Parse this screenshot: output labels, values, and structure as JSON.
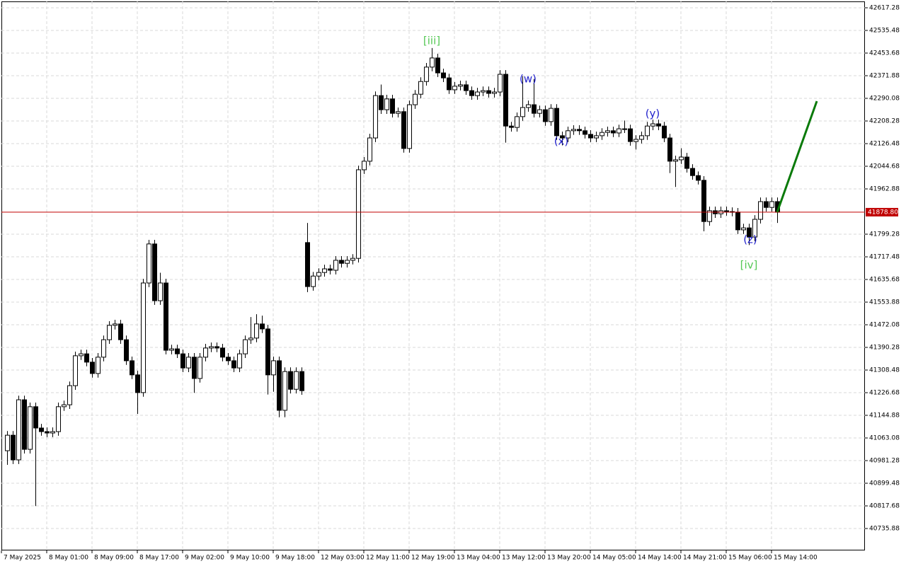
{
  "chart_data": {
    "type": "candlestick",
    "ylim": [
      40656.7,
      42640.3
    ],
    "yticks": [
      42617.28,
      42535.48,
      42453.68,
      42371.88,
      42290.08,
      42208.28,
      42126.48,
      42044.68,
      41962.88,
      41799.28,
      41717.48,
      41635.68,
      41553.88,
      41472.08,
      41390.28,
      41308.48,
      41226.68,
      41144.88,
      41063.08,
      40981.28,
      40899.48,
      40817.68,
      40735.88
    ],
    "grid": true,
    "up_color": "#ffffff",
    "down_color": "#000000",
    "outline_color": "#000000",
    "current_price": {
      "value": 41878.8,
      "label": "41878.80",
      "color": "#c00000"
    },
    "projection": {
      "x": [
        136,
        143
      ],
      "values": [
        41878.8,
        42280
      ],
      "color": "#0a7a0a"
    },
    "annotations": [
      {
        "text": "[iii]",
        "color": "#55c855"
      },
      {
        "text": "(w)",
        "color": "#2222cc"
      },
      {
        "text": "(x)",
        "color": "#2222cc"
      },
      {
        "text": "(y)",
        "color": "#2222cc"
      },
      {
        "text": "(z)",
        "color": "#2222cc"
      },
      {
        "text": "[iv]",
        "color": "#55c855"
      }
    ],
    "categories": [
      "7 May 2025",
      null,
      null,
      null,
      null,
      null,
      null,
      null,
      "8 May 01:00",
      null,
      null,
      null,
      null,
      null,
      null,
      null,
      "8 May 09:00",
      null,
      null,
      null,
      null,
      null,
      null,
      null,
      "8 May 17:00",
      null,
      null,
      null,
      null,
      null,
      null,
      null,
      "9 May 02:00",
      null,
      null,
      null,
      null,
      null,
      null,
      null,
      "9 May 10:00",
      null,
      null,
      null,
      null,
      null,
      null,
      null,
      "9 May 18:00",
      null,
      null,
      null,
      null,
      null,
      null,
      null,
      "12 May 03:00",
      null,
      null,
      null,
      null,
      null,
      null,
      null,
      "12 May 11:00",
      null,
      null,
      null,
      null,
      null,
      null,
      null,
      "12 May 19:00",
      null,
      null,
      null,
      null,
      null,
      null,
      null,
      "13 May 04:00",
      null,
      null,
      null,
      null,
      null,
      null,
      null,
      "13 May 12:00",
      null,
      null,
      null,
      null,
      null,
      null,
      null,
      "13 May 20:00",
      null,
      null,
      null,
      null,
      null,
      null,
      null,
      "14 May 05:00",
      null,
      null,
      null,
      null,
      null,
      null,
      null,
      "14 May 14:00",
      null,
      null,
      null,
      null,
      null,
      null,
      null,
      "14 May 21:00",
      null,
      null,
      null,
      null,
      null,
      null,
      null,
      "15 May 06:00",
      null,
      null,
      null,
      null,
      null,
      null,
      null,
      "15 May 14:00"
    ],
    "ohlc": [
      [
        41017,
        41088,
        40966,
        41073
      ],
      [
        41073,
        41088,
        40969,
        40984
      ],
      [
        40984,
        41216,
        40969,
        41201
      ],
      [
        41201,
        41216,
        41007,
        41022
      ],
      [
        41022,
        41191,
        41007,
        41176
      ],
      [
        41176,
        41191,
        40817,
        41099
      ],
      [
        41099,
        41114,
        41071,
        41086
      ],
      [
        41086,
        41101,
        41066,
        41081
      ],
      [
        41081,
        41101,
        41066,
        41086
      ],
      [
        41086,
        41191,
        41071,
        41176
      ],
      [
        41176,
        41198,
        41161,
        41183
      ],
      [
        41183,
        41267,
        41168,
        41252
      ],
      [
        41252,
        41375,
        41237,
        41360
      ],
      [
        41360,
        41382,
        41345,
        41367
      ],
      [
        41367,
        41382,
        41322,
        41337
      ],
      [
        41337,
        41352,
        41281,
        41296
      ],
      [
        41296,
        41370,
        41281,
        41355
      ],
      [
        41355,
        41433,
        41340,
        41418
      ],
      [
        41418,
        41485,
        41403,
        41470
      ],
      [
        41470,
        41490,
        41455,
        41475
      ],
      [
        41475,
        41490,
        41403,
        41418
      ],
      [
        41418,
        41433,
        41327,
        41342
      ],
      [
        41342,
        41357,
        41276,
        41291
      ],
      [
        41291,
        41306,
        41150,
        41227
      ],
      [
        41227,
        41638,
        41212,
        41623
      ],
      [
        41623,
        41779,
        41608,
        41764
      ],
      [
        41764,
        41779,
        41544,
        41559
      ],
      [
        41559,
        41660,
        41544,
        41623
      ],
      [
        41623,
        41638,
        41365,
        41380
      ],
      [
        41380,
        41400,
        41365,
        41385
      ],
      [
        41385,
        41400,
        41352,
        41367
      ],
      [
        41367,
        41382,
        41301,
        41316
      ],
      [
        41316,
        41370,
        41301,
        41355
      ],
      [
        41355,
        41370,
        41226,
        41278
      ],
      [
        41278,
        41370,
        41263,
        41355
      ],
      [
        41355,
        41403,
        41340,
        41388
      ],
      [
        41388,
        41408,
        41373,
        41393
      ],
      [
        41393,
        41408,
        41373,
        41388
      ],
      [
        41388,
        41403,
        41340,
        41355
      ],
      [
        41355,
        41370,
        41327,
        41342
      ],
      [
        41342,
        41357,
        41301,
        41316
      ],
      [
        41316,
        41382,
        41301,
        41367
      ],
      [
        41367,
        41433,
        41352,
        41418
      ],
      [
        41418,
        41500,
        41403,
        41424
      ],
      [
        41424,
        41510,
        41409,
        41475
      ],
      [
        41475,
        41505,
        41442,
        41457
      ],
      [
        41457,
        41472,
        41220,
        41291
      ],
      [
        41291,
        41357,
        41230,
        41342
      ],
      [
        41342,
        41357,
        41138,
        41163
      ],
      [
        41163,
        41318,
        41138,
        41303
      ],
      [
        41303,
        41318,
        41224,
        41239
      ],
      [
        41239,
        41318,
        41224,
        41303
      ],
      [
        41303,
        41318,
        41219,
        41234
      ],
      [
        41769,
        41840,
        41590,
        41610
      ],
      [
        41610,
        41663,
        41595,
        41648
      ],
      [
        41648,
        41676,
        41633,
        41661
      ],
      [
        41661,
        41689,
        41646,
        41674
      ],
      [
        41674,
        41689,
        41654,
        41669
      ],
      [
        41669,
        41720,
        41654,
        41705
      ],
      [
        41705,
        41720,
        41679,
        41694
      ],
      [
        41694,
        41720,
        41679,
        41705
      ],
      [
        41705,
        41727,
        41690,
        41712
      ],
      [
        41712,
        42047,
        41697,
        42032
      ],
      [
        42032,
        42078,
        42017,
        42063
      ],
      [
        42063,
        42162,
        42048,
        42147
      ],
      [
        42147,
        42315,
        42132,
        42300
      ],
      [
        42300,
        42340,
        42234,
        42249
      ],
      [
        42249,
        42303,
        42234,
        42288
      ],
      [
        42288,
        42303,
        42221,
        42236
      ],
      [
        42236,
        42257,
        42221,
        42242
      ],
      [
        42242,
        42257,
        42094,
        42109
      ],
      [
        42109,
        42282,
        42094,
        42267
      ],
      [
        42267,
        42320,
        42252,
        42305
      ],
      [
        42305,
        42366,
        42290,
        42351
      ],
      [
        42351,
        42418,
        42336,
        42403
      ],
      [
        42403,
        42472,
        42388,
        42436
      ],
      [
        42436,
        42451,
        42367,
        42382
      ],
      [
        42382,
        42397,
        42349,
        42364
      ],
      [
        42364,
        42379,
        42306,
        42321
      ],
      [
        42321,
        42349,
        42306,
        42334
      ],
      [
        42334,
        42354,
        42319,
        42339
      ],
      [
        42339,
        42354,
        42303,
        42318
      ],
      [
        42318,
        42333,
        42285,
        42300
      ],
      [
        42300,
        42328,
        42285,
        42313
      ],
      [
        42313,
        42333,
        42298,
        42318
      ],
      [
        42318,
        42333,
        42293,
        42308
      ],
      [
        42308,
        42328,
        42293,
        42313
      ],
      [
        42313,
        42392,
        42298,
        42377
      ],
      [
        42377,
        42392,
        42130,
        42190
      ],
      [
        42190,
        42205,
        42170,
        42185
      ],
      [
        42185,
        42239,
        42170,
        42224
      ],
      [
        42224,
        42370,
        42209,
        42257
      ],
      [
        42257,
        42282,
        42242,
        42267
      ],
      [
        42267,
        42360,
        42221,
        42236
      ],
      [
        42236,
        42264,
        42221,
        42249
      ],
      [
        42249,
        42264,
        42191,
        42206
      ],
      [
        42206,
        42269,
        42191,
        42254
      ],
      [
        42254,
        42269,
        42140,
        42155
      ],
      [
        42155,
        42170,
        42120,
        42147
      ],
      [
        42147,
        42188,
        42132,
        42173
      ],
      [
        42173,
        42193,
        42158,
        42178
      ],
      [
        42178,
        42193,
        42158,
        42173
      ],
      [
        42173,
        42188,
        42145,
        42160
      ],
      [
        42160,
        42175,
        42132,
        42147
      ],
      [
        42147,
        42170,
        42132,
        42155
      ],
      [
        42155,
        42182,
        42140,
        42167
      ],
      [
        42167,
        42188,
        42152,
        42173
      ],
      [
        42173,
        42188,
        42150,
        42165
      ],
      [
        42165,
        42195,
        42150,
        42180
      ],
      [
        42180,
        42210,
        42165,
        42180
      ],
      [
        42180,
        42195,
        42119,
        42134
      ],
      [
        42134,
        42157,
        42105,
        42142
      ],
      [
        42142,
        42170,
        42127,
        42155
      ],
      [
        42155,
        42205,
        42140,
        42190
      ],
      [
        42190,
        42213,
        42175,
        42198
      ],
      [
        42198,
        42213,
        42175,
        42190
      ],
      [
        42190,
        42205,
        42132,
        42147
      ],
      [
        42147,
        42162,
        42020,
        42063
      ],
      [
        42063,
        42083,
        41970,
        42068
      ],
      [
        42068,
        42110,
        42053,
        42078
      ],
      [
        42078,
        42093,
        42022,
        42037
      ],
      [
        42037,
        42052,
        41996,
        42011
      ],
      [
        42011,
        42026,
        41979,
        41994
      ],
      [
        41994,
        42009,
        41810,
        41845
      ],
      [
        41845,
        41899,
        41830,
        41884
      ],
      [
        41884,
        41899,
        41858,
        41873
      ],
      [
        41873,
        41899,
        41858,
        41884
      ],
      [
        41884,
        41899,
        41866,
        41881
      ],
      [
        41881,
        41896,
        41864,
        41879
      ],
      [
        41879,
        41894,
        41800,
        41815
      ],
      [
        41815,
        41837,
        41800,
        41822
      ],
      [
        41822,
        41837,
        41760,
        41789
      ],
      [
        41789,
        41868,
        41774,
        41853
      ],
      [
        41853,
        41932,
        41838,
        41917
      ],
      [
        41917,
        41932,
        41881,
        41896
      ],
      [
        41896,
        41932,
        41881,
        41917
      ],
      [
        41917,
        41932,
        41840,
        41878.8
      ]
    ]
  }
}
